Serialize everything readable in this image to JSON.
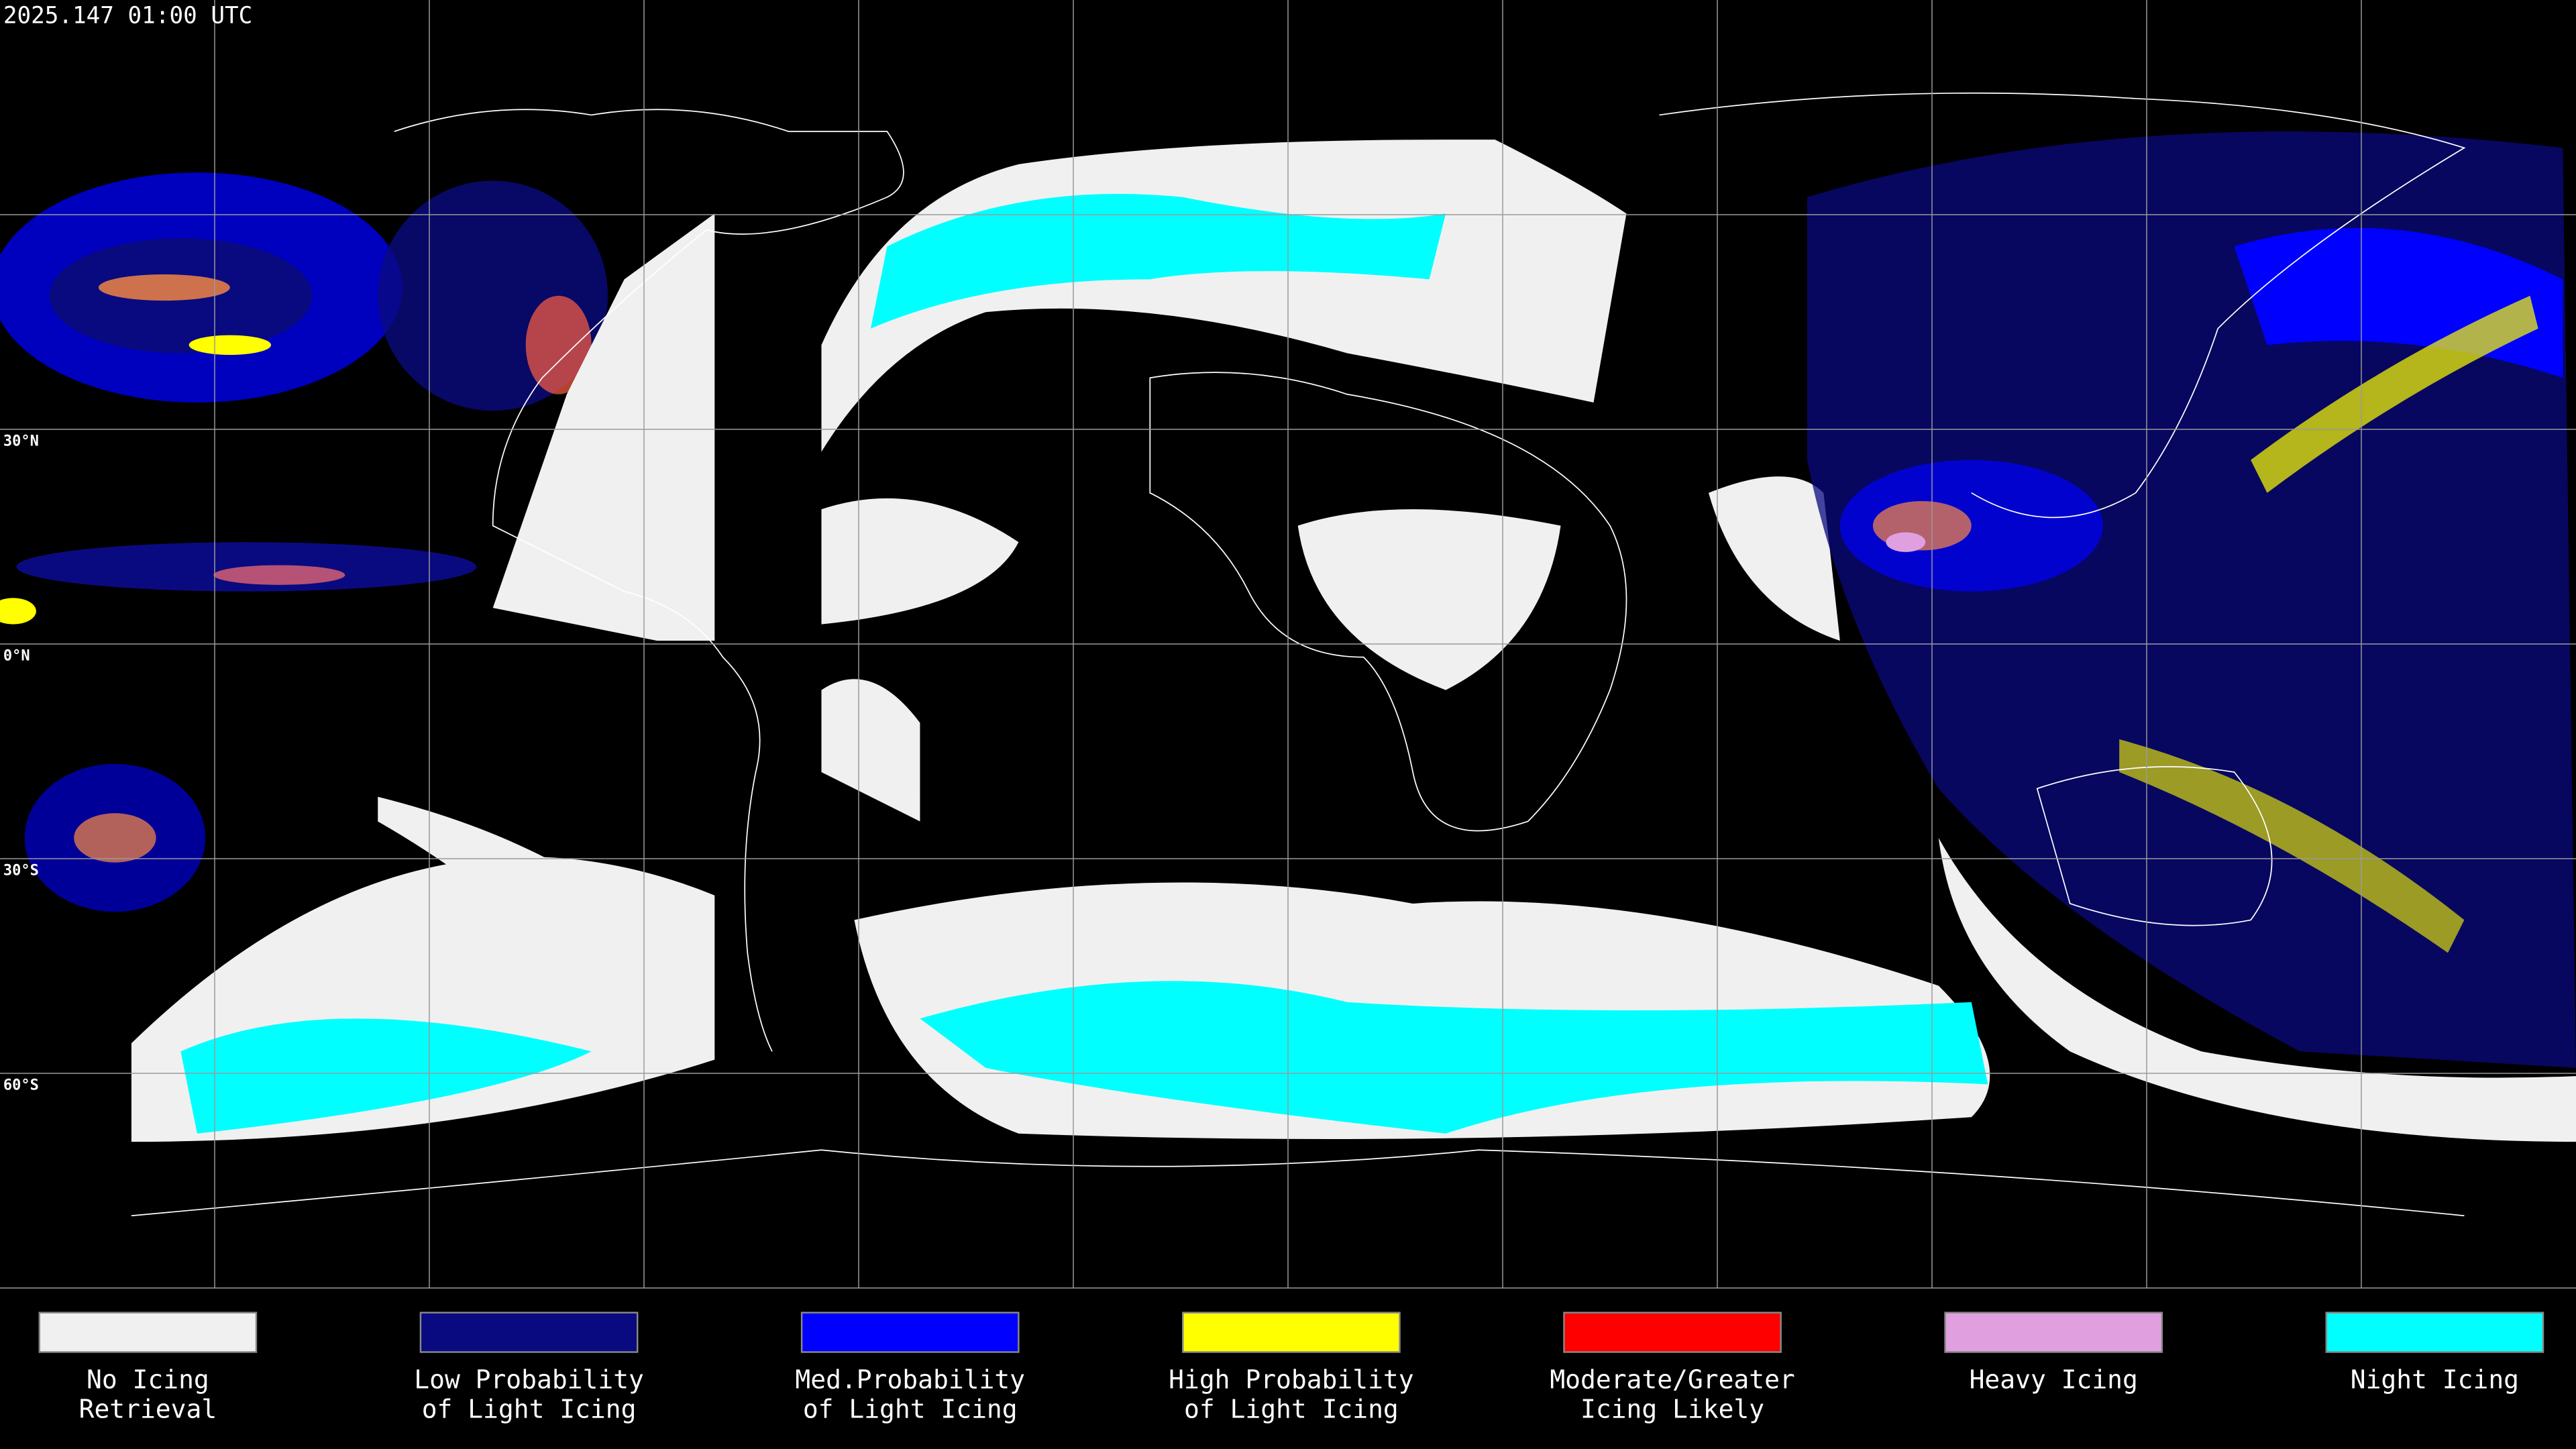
{
  "timestamp": "2025.147 01:00 UTC",
  "latitude_labels": [
    "30°N",
    "0°N",
    "30°S",
    "60°S"
  ],
  "legend": [
    {
      "lines": [
        "No Icing",
        "Retrieval"
      ],
      "color": "#f0f0f0"
    },
    {
      "lines": [
        "Low Probability",
        "of Light Icing"
      ],
      "color": "#0a0a80"
    },
    {
      "lines": [
        "Med.Probability",
        "of Light Icing"
      ],
      "color": "#0000ff"
    },
    {
      "lines": [
        "High Probability",
        "of Light Icing"
      ],
      "color": "#ffff00"
    },
    {
      "lines": [
        "Moderate/Greater",
        "Icing Likely"
      ],
      "color": "#ff0000"
    },
    {
      "lines": [
        "Heavy Icing"
      ],
      "color": "#e0a0e0"
    },
    {
      "lines": [
        "Night Icing"
      ],
      "color": "#00ffff"
    }
  ]
}
